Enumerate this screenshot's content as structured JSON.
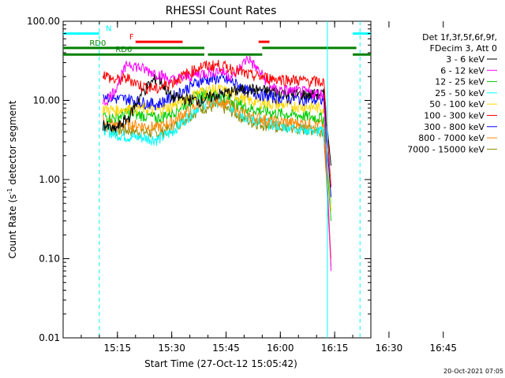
{
  "chart_data": {
    "type": "line",
    "title": "RHESSI Count Rates",
    "xlabel": "Start Time (27-Oct-12 15:05:42)",
    "ylabel_main": "Count Rate (s",
    "ylabel_sup": "-1",
    "ylabel_tail": " detector segment",
    "y_scale": "log",
    "ylim": [
      0.01,
      100
    ],
    "y_ticks": [
      {
        "value": 0.01,
        "label": "0.01"
      },
      {
        "value": 0.1,
        "label": "0.10"
      },
      {
        "value": 1,
        "label": "1.00"
      },
      {
        "value": 10,
        "label": "10.00"
      },
      {
        "value": 100,
        "label": "100.00"
      }
    ],
    "xlim_minutes": [
      -10,
      75
    ],
    "x_ticks": [
      {
        "value": 5,
        "label": "15:15"
      },
      {
        "value": 20,
        "label": "15:30"
      },
      {
        "value": 35,
        "label": "15:45"
      },
      {
        "value": 50,
        "label": "16:00"
      },
      {
        "value": 65,
        "label": "16:15"
      },
      {
        "value": 80,
        "label": "16:30"
      },
      {
        "value": 95,
        "label": "16:45"
      }
    ],
    "legend_placement": "right",
    "legend_header": [
      "Det 1f,3f,5f,6f,9f,",
      "FDecim 3, Att 0"
    ],
    "series": [
      {
        "name": "3 - 6 keV",
        "color": "#000000",
        "values": [
          5,
          4.2,
          6,
          13,
          20,
          11,
          10,
          12,
          13,
          14,
          13,
          12,
          12,
          1.5
        ]
      },
      {
        "name": "6 - 12 keV",
        "color": "#ff00ff",
        "values": [
          9,
          13,
          30,
          25,
          22,
          18,
          22,
          24,
          20,
          35,
          14,
          13,
          12,
          0.07
        ]
      },
      {
        "name": "12 - 25 keV",
        "color": "#00cc00",
        "values": [
          6.5,
          6,
          7,
          6.5,
          6,
          7,
          12,
          12,
          10,
          8,
          7,
          6.5,
          6,
          0.3
        ]
      },
      {
        "name": "25 - 50 keV",
        "color": "#00ffff",
        "values": [
          4.5,
          3.8,
          3.5,
          3.4,
          3.2,
          4,
          9,
          10,
          8,
          6,
          5,
          4.5,
          4,
          0.5
        ]
      },
      {
        "name": "50 - 100 keV",
        "color": "#ffd700",
        "values": [
          8,
          7.5,
          8,
          8,
          7.5,
          8.5,
          13,
          14,
          12,
          10,
          9,
          8.5,
          8,
          0.4
        ]
      },
      {
        "name": "100 - 300 keV",
        "color": "#ff0000",
        "values": [
          22,
          18,
          19,
          15,
          14,
          17,
          27,
          28,
          25,
          21,
          19,
          18,
          17,
          0.8
        ]
      },
      {
        "name": "300 - 800 keV",
        "color": "#0000ff",
        "values": [
          12,
          10.5,
          10.5,
          9.5,
          9,
          11,
          18,
          19,
          17,
          13,
          11,
          10.5,
          10,
          0.6
        ]
      },
      {
        "name": "800 - 7000 keV",
        "color": "#ff8800",
        "values": [
          5.8,
          5,
          5,
          4.8,
          4.6,
          5.4,
          9.5,
          10,
          8.5,
          6.5,
          5.5,
          5.2,
          5,
          0.1
        ]
      },
      {
        "name": "7000 - 15000 keV",
        "color": "#8b8b00",
        "values": [
          5,
          4.2,
          4.2,
          4,
          3.8,
          4.5,
          8,
          8.5,
          7.2,
          5.5,
          4.7,
          4.4,
          4.2,
          0.08
        ]
      }
    ],
    "series_x_minutes": [
      1,
      4,
      8,
      12,
      16,
      20,
      28,
      33,
      37,
      41,
      48,
      55,
      62,
      64
    ],
    "annotations": [
      {
        "text": "N",
        "color": "#00ffff"
      },
      {
        "text": "F",
        "color": "#ff0000"
      },
      {
        "text": "RD0",
        "color": "#008000"
      },
      {
        "text": "RD6",
        "color": "#008000"
      }
    ],
    "flag_bars": [
      {
        "flag": "N",
        "color": "#00ffff",
        "value": 70,
        "segments": [
          [
            -10,
            0
          ],
          [
            70,
            75
          ]
        ]
      },
      {
        "flag": "F",
        "color": "#ff0000",
        "value": 55,
        "segments": [
          [
            10,
            23
          ],
          [
            44,
            47
          ]
        ]
      },
      {
        "flag": "RD0",
        "color": "#008000",
        "value": 46,
        "segments": [
          [
            -10,
            29
          ],
          [
            45,
            71
          ]
        ]
      },
      {
        "flag": "RD6",
        "color": "#008000",
        "value": 38,
        "segments": [
          [
            -10,
            6
          ],
          [
            6,
            29
          ],
          [
            30,
            45
          ],
          [
            70,
            75
          ]
        ]
      }
    ],
    "vertical_markers": [
      {
        "value": 0,
        "color": "#00ffff",
        "style": "dashed"
      },
      {
        "value": 63,
        "color": "#00ffff",
        "style": "solid"
      },
      {
        "value": 72,
        "color": "#00ffff",
        "style": "dashed"
      }
    ]
  },
  "footer": {
    "timestamp": "20-Oct-2021 07:05"
  }
}
